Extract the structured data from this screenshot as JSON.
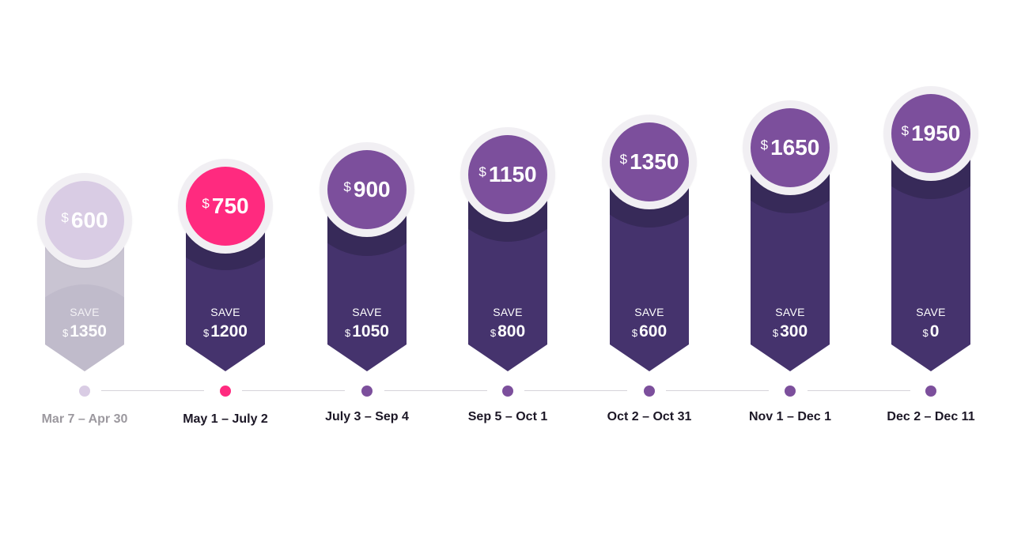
{
  "colors": {
    "active_accent": "#ff2a7f",
    "past_light": "#d9cce4",
    "past_banner": "#c9c4d2",
    "badge_purple": "#7c4f9c",
    "banner_top": "#372a59",
    "banner_body": "#45336d",
    "dot_purple": "#7c4f9c",
    "past_text": "#9c999f"
  },
  "tiers": [
    {
      "price_currency": "$",
      "price": "600",
      "save_label": "SAVE",
      "save_currency": "$",
      "save_amount": "1350",
      "date_range": "Mar 7 – Apr 30",
      "state": "past"
    },
    {
      "price_currency": "$",
      "price": "750",
      "save_label": "SAVE",
      "save_currency": "$",
      "save_amount": "1200",
      "date_range": "May 1 – July 2",
      "state": "current"
    },
    {
      "price_currency": "$",
      "price": "900",
      "save_label": "SAVE",
      "save_currency": "$",
      "save_amount": "1050",
      "date_range": "July 3 – Sep 4",
      "state": "upcoming"
    },
    {
      "price_currency": "$",
      "price": "1150",
      "save_label": "SAVE",
      "save_currency": "$",
      "save_amount": "800",
      "date_range": "Sep 5 – Oct 1",
      "state": "upcoming"
    },
    {
      "price_currency": "$",
      "price": "1350",
      "save_label": "SAVE",
      "save_currency": "$",
      "save_amount": "600",
      "date_range": "Oct 2 – Oct 31",
      "state": "upcoming"
    },
    {
      "price_currency": "$",
      "price": "1650",
      "save_label": "SAVE",
      "save_currency": "$",
      "save_amount": "300",
      "date_range": "Nov 1 – Dec 1",
      "state": "upcoming"
    },
    {
      "price_currency": "$",
      "price": "1950",
      "save_label": "SAVE",
      "save_currency": "$",
      "save_amount": "0",
      "date_range": "Dec 2 – Dec 11",
      "state": "upcoming"
    }
  ]
}
